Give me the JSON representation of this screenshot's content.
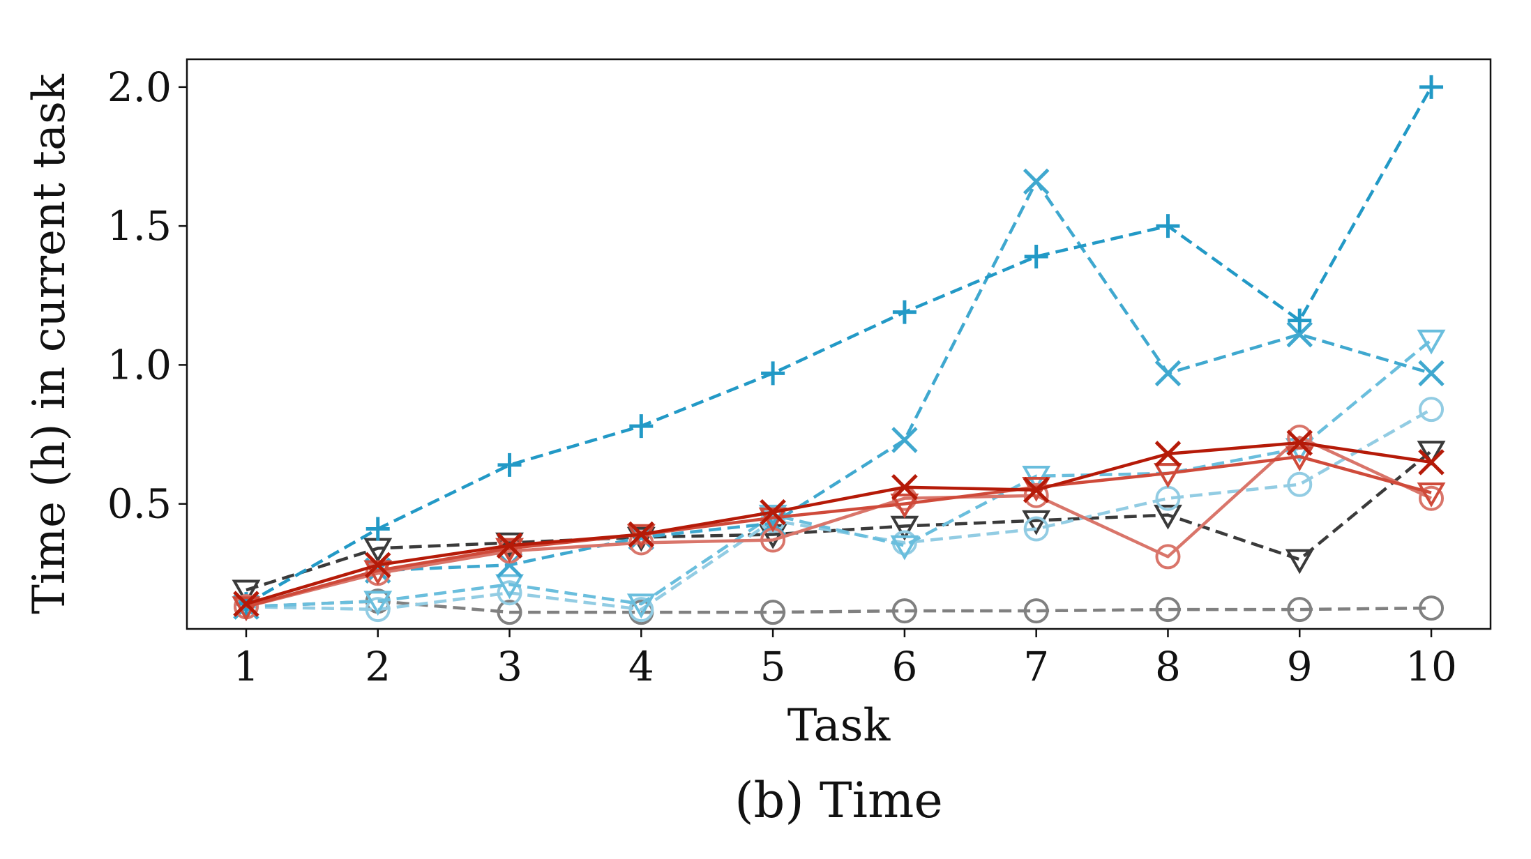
{
  "chart_data": {
    "type": "line",
    "title": "",
    "caption": "(b) Time",
    "xlabel": "Task",
    "ylabel": "Time (h) in current task",
    "x": [
      1,
      2,
      3,
      4,
      5,
      6,
      7,
      8,
      9,
      10
    ],
    "xlim": [
      0.55,
      10.45
    ],
    "ylim": [
      0.05,
      2.1
    ],
    "yticks": [
      0.5,
      1.0,
      1.5,
      2.0
    ],
    "ytick_labels": [
      "0.5",
      "1.0",
      "1.5",
      "2.0"
    ],
    "xtick_labels": [
      "1",
      "2",
      "3",
      "4",
      "5",
      "6",
      "7",
      "8",
      "9",
      "10"
    ],
    "grid": false,
    "legend": false,
    "series": [
      {
        "color": "#808080",
        "dash": true,
        "marker": "circle",
        "opacity": 1.0,
        "values": [
          0.13,
          0.15,
          0.11,
          0.11,
          0.11,
          0.115,
          0.115,
          0.12,
          0.12,
          0.125
        ]
      },
      {
        "color": "#3a3a3a",
        "dash": true,
        "marker": "triangle",
        "opacity": 1.0,
        "values": [
          0.19,
          0.34,
          0.36,
          0.38,
          0.39,
          0.42,
          0.44,
          0.46,
          0.3,
          0.69
        ]
      },
      {
        "color": "#92cce3",
        "dash": true,
        "marker": "circle",
        "opacity": 1.0,
        "values": [
          0.13,
          0.12,
          0.18,
          0.12,
          0.44,
          0.36,
          0.41,
          0.52,
          0.57,
          0.84
        ]
      },
      {
        "color": "#6abedd",
        "dash": true,
        "marker": "triangle",
        "opacity": 1.0,
        "values": [
          0.13,
          0.15,
          0.21,
          0.14,
          0.46,
          0.35,
          0.6,
          0.61,
          0.7,
          1.09
        ]
      },
      {
        "color": "#3fa8cf",
        "dash": true,
        "marker": "x",
        "opacity": 1.0,
        "values": [
          0.13,
          0.26,
          0.28,
          0.38,
          0.43,
          0.73,
          1.66,
          0.97,
          1.11,
          0.97
        ]
      },
      {
        "color": "#2299c6",
        "dash": true,
        "marker": "plus",
        "opacity": 1.0,
        "values": [
          0.14,
          0.41,
          0.64,
          0.78,
          0.97,
          1.19,
          1.39,
          1.5,
          1.16,
          2.0
        ]
      },
      {
        "color": "#d9756a",
        "dash": false,
        "marker": "circle",
        "opacity": 1.0,
        "values": [
          0.13,
          0.25,
          0.33,
          0.36,
          0.37,
          0.52,
          0.53,
          0.31,
          0.74,
          0.52
        ]
      },
      {
        "color": "#cf4a3a",
        "dash": false,
        "marker": "triangle",
        "opacity": 1.0,
        "values": [
          0.13,
          0.26,
          0.34,
          0.39,
          0.45,
          0.5,
          0.56,
          0.61,
          0.67,
          0.54
        ]
      },
      {
        "color": "#b51a08",
        "dash": false,
        "marker": "x",
        "opacity": 1.0,
        "values": [
          0.14,
          0.28,
          0.35,
          0.39,
          0.47,
          0.56,
          0.55,
          0.68,
          0.72,
          0.65
        ]
      }
    ]
  }
}
